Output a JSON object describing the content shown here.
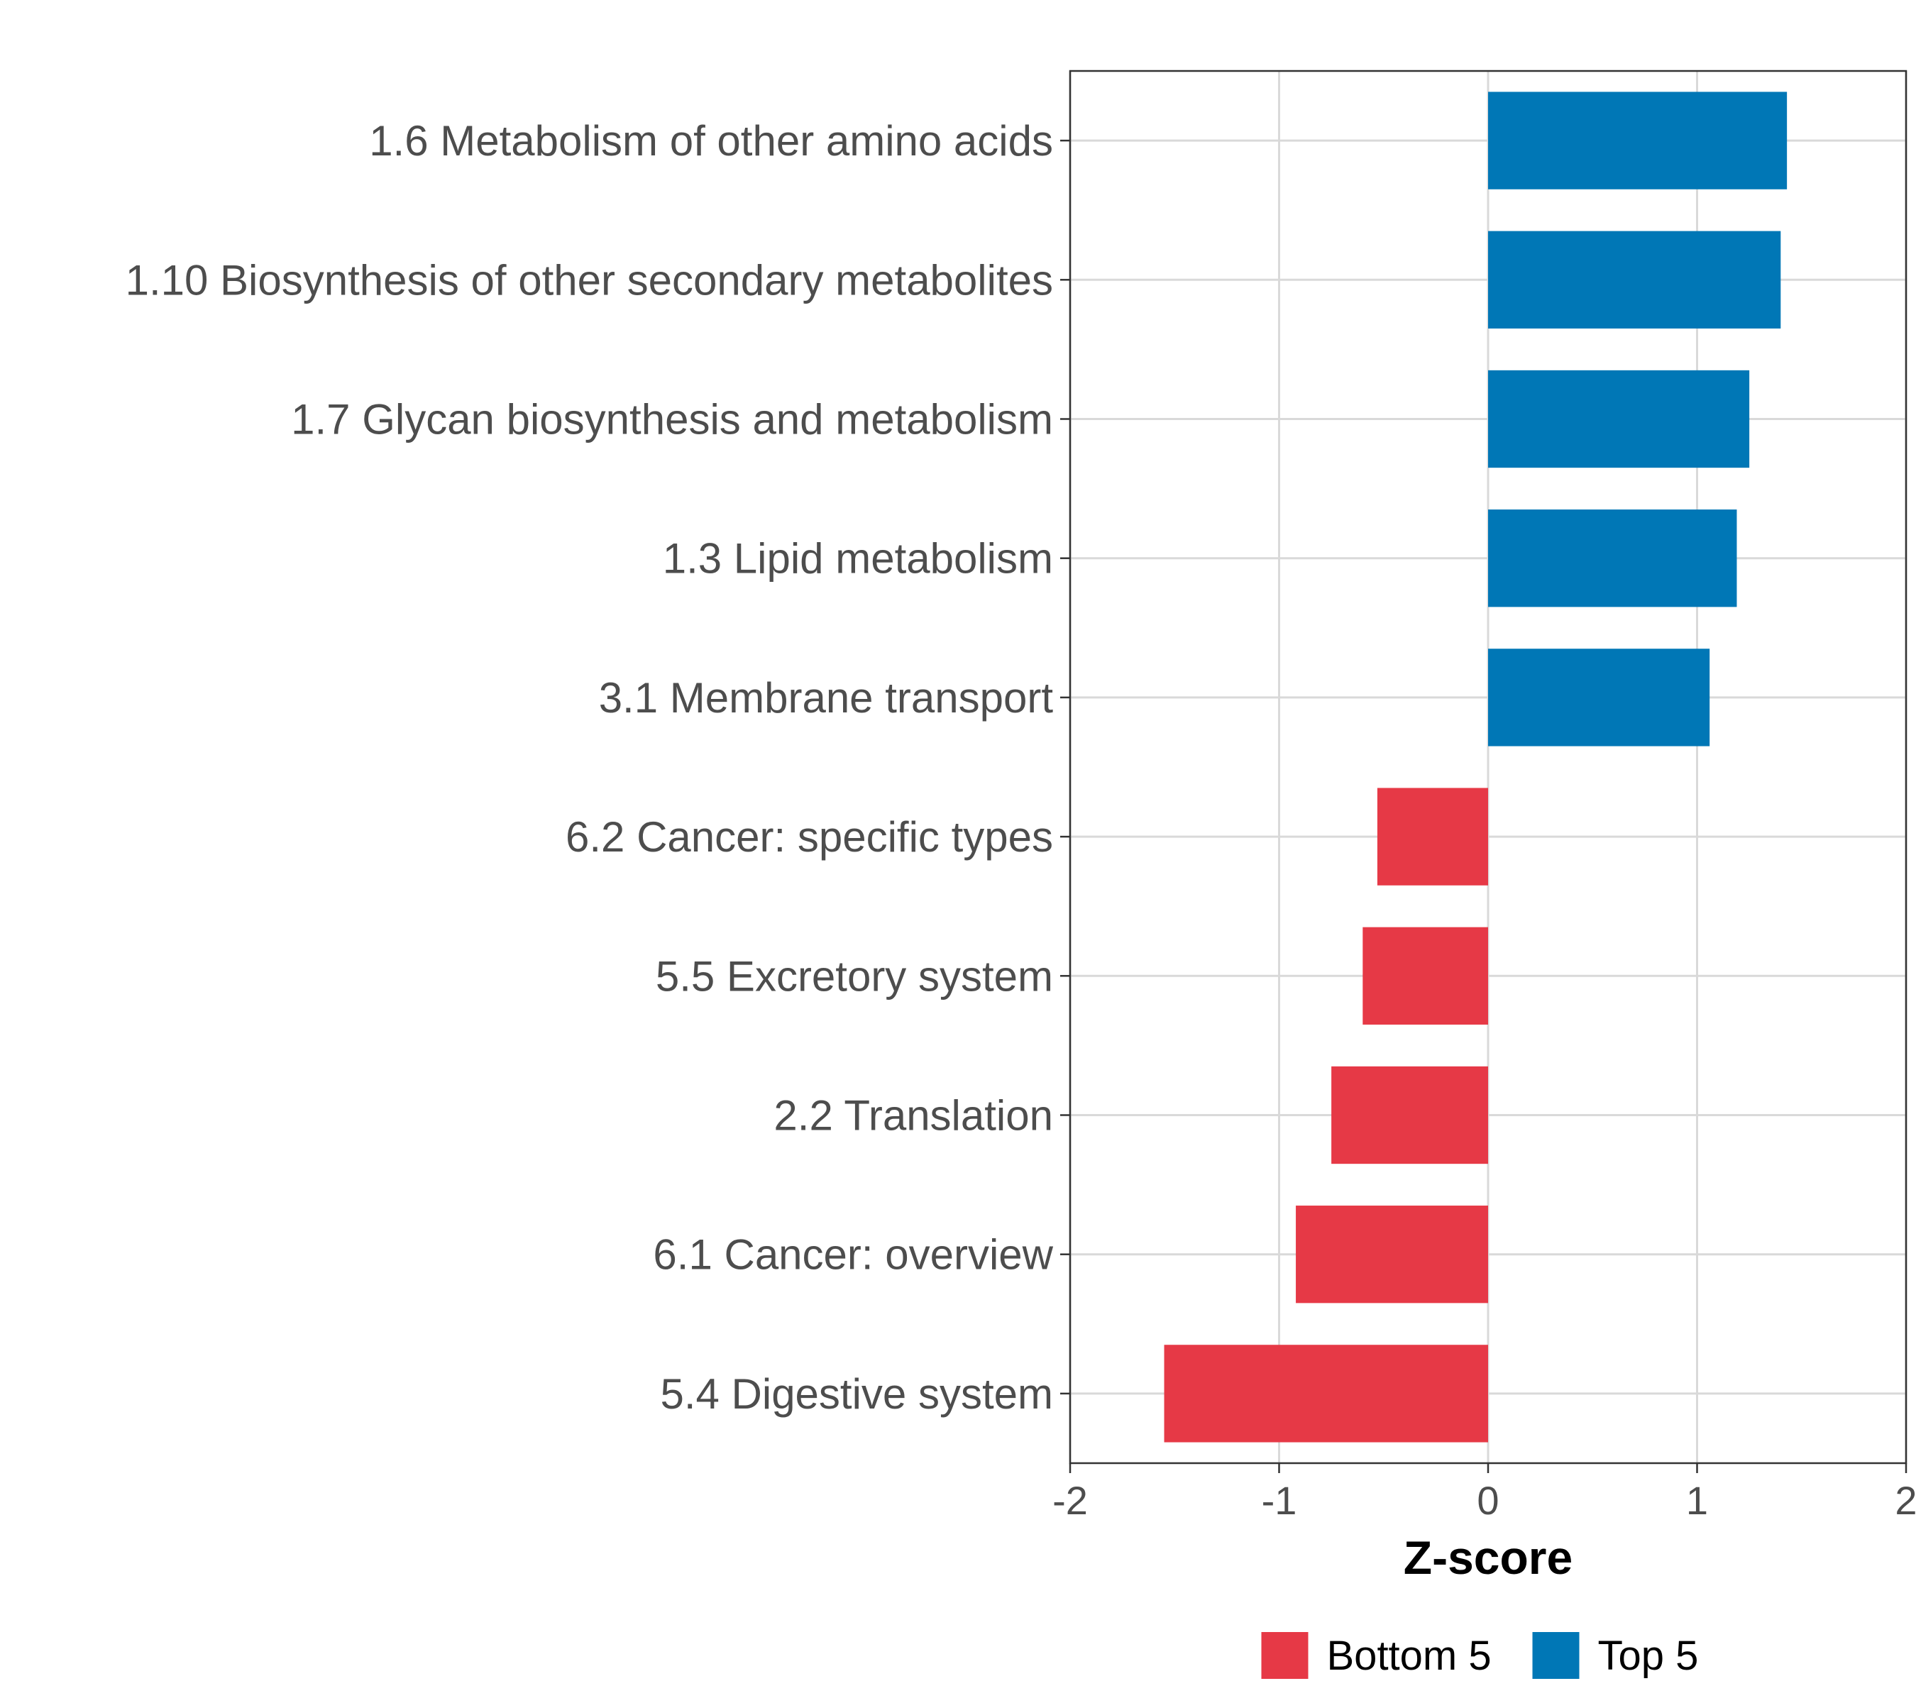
{
  "chart_data": {
    "type": "bar",
    "orientation": "horizontal",
    "categories": [
      "1.6 Metabolism of other amino acids",
      "1.10 Biosynthesis of other secondary metabolites",
      "1.7 Glycan biosynthesis and metabolism",
      "1.3 Lipid metabolism",
      "3.1 Membrane transport",
      "6.2 Cancer: specific types",
      "5.5 Excretory system",
      "2.2 Translation",
      "6.1 Cancer: overview",
      "5.4 Digestive system"
    ],
    "values": [
      1.43,
      1.4,
      1.25,
      1.19,
      1.06,
      -0.53,
      -0.6,
      -0.75,
      -0.92,
      -1.55
    ],
    "groups": [
      "Top 5",
      "Top 5",
      "Top 5",
      "Top 5",
      "Top 5",
      "Bottom 5",
      "Bottom 5",
      "Bottom 5",
      "Bottom 5",
      "Bottom 5"
    ],
    "xlabel": "Z-score",
    "ylabel": "",
    "xlim": [
      -2,
      2
    ],
    "xticks": [
      "-2",
      "-1",
      "0",
      "1",
      "2"
    ],
    "grid": true,
    "legend_position": "bottom",
    "legend": [
      {
        "name": "Bottom 5",
        "color": "#E63946"
      },
      {
        "name": "Top 5",
        "color": "#0077B6"
      }
    ]
  }
}
